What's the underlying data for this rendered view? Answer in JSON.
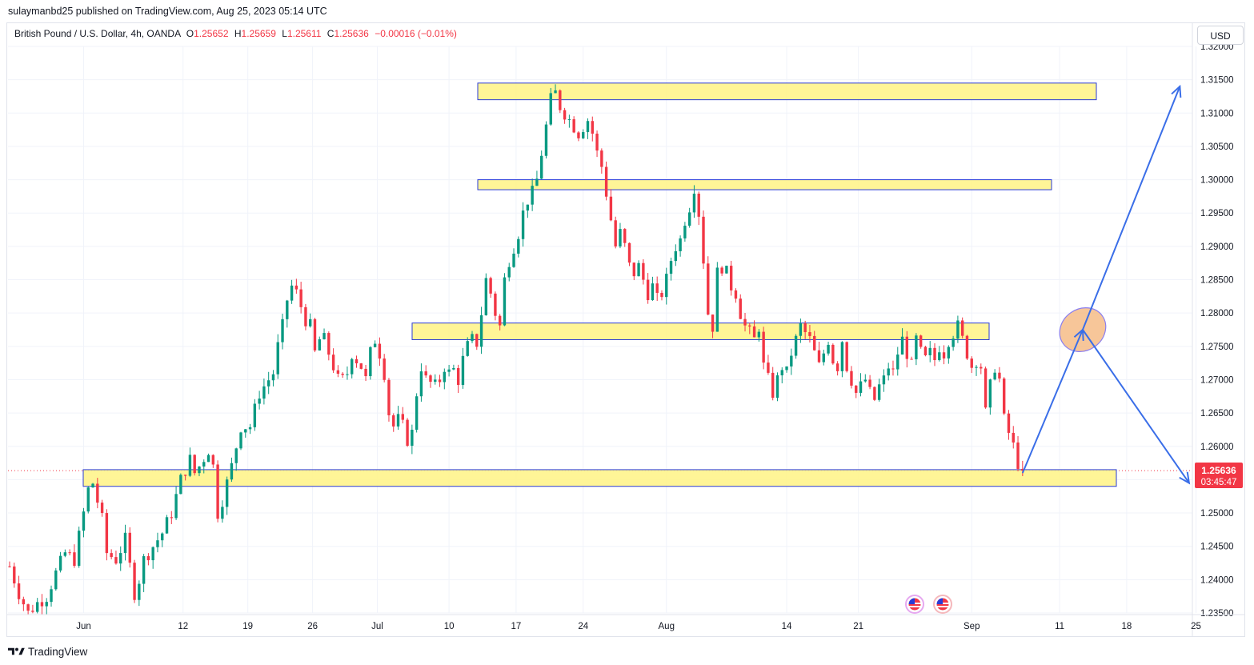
{
  "header": {
    "publisher_line": "sulaymanbd25 published on TradingView.com, Aug 25, 2023 05:14 UTC"
  },
  "legend": {
    "symbol": "British Pound / U.S. Dollar, 4h, OANDA",
    "open_label": "O",
    "open": "1.25652",
    "high_label": "H",
    "high": "1.25659",
    "low_label": "L",
    "low": "1.25611",
    "close_label": "C",
    "close": "1.25636",
    "change": "−0.00016 (−0.01%)"
  },
  "currency_button": "USD",
  "price_tag": {
    "price": "1.25636",
    "countdown": "03:45:47"
  },
  "brand": "TradingView",
  "colors": {
    "up": "#089981",
    "down": "#f23645",
    "zone_fill": "#fff48c",
    "zone_stroke": "#2a3bd6",
    "arrow": "#3a6ee8",
    "tag": "#f23645"
  },
  "chart_data": {
    "type": "candlestick",
    "symbol": "GBPUSD",
    "timeframe": "4h",
    "ylim": [
      1.235,
      1.32
    ],
    "y_ticks": [
      "1.23500",
      "1.24000",
      "1.24500",
      "1.25000",
      "1.25500",
      "1.26000",
      "1.26500",
      "1.27000",
      "1.27500",
      "1.28000",
      "1.28500",
      "1.29000",
      "1.29500",
      "1.30000",
      "1.30500",
      "1.31000",
      "1.31500",
      "1.32000"
    ],
    "x_ticks": [
      "Jun",
      "12",
      "19",
      "26",
      "Jul",
      "10",
      "17",
      "24",
      "Aug",
      "14",
      "21",
      "Sep",
      "11",
      "18",
      "25"
    ],
    "price_path": [
      [
        0,
        1.242
      ],
      [
        2,
        1.238
      ],
      [
        4,
        1.235
      ],
      [
        6,
        1.2365
      ],
      [
        8,
        1.2375
      ],
      [
        10,
        1.241
      ],
      [
        12,
        1.244
      ],
      [
        14,
        1.243
      ],
      [
        16,
        1.25
      ],
      [
        17,
        1.2535
      ],
      [
        18,
        1.2545
      ],
      [
        20,
        1.249
      ],
      [
        21,
        1.244
      ],
      [
        23,
        1.243
      ],
      [
        25,
        1.246
      ],
      [
        26,
        1.242
      ],
      [
        27,
        1.238
      ],
      [
        28,
        1.24
      ],
      [
        29,
        1.243
      ],
      [
        30,
        1.244
      ],
      [
        31,
        1.245
      ],
      [
        33,
        1.247
      ],
      [
        35,
        1.25
      ],
      [
        37,
        1.255
      ],
      [
        39,
        1.258
      ],
      [
        40,
        1.256
      ],
      [
        41,
        1.257
      ],
      [
        43,
        1.2595
      ],
      [
        44,
        1.257
      ],
      [
        45,
        1.25
      ],
      [
        46,
        1.252
      ],
      [
        48,
        1.257
      ],
      [
        50,
        1.263
      ],
      [
        52,
        1.263
      ],
      [
        54,
        1.268
      ],
      [
        56,
        1.27
      ],
      [
        57,
        1.271
      ],
      [
        58,
        1.275
      ],
      [
        59,
        1.278
      ],
      [
        60,
        1.282
      ],
      [
        61,
        1.284
      ],
      [
        62,
        1.283
      ],
      [
        63,
        1.281
      ],
      [
        64,
        1.279
      ],
      [
        65,
        1.278
      ],
      [
        66,
        1.274
      ],
      [
        67,
        1.276
      ],
      [
        68,
        1.276
      ],
      [
        69,
        1.274
      ],
      [
        70,
        1.272
      ],
      [
        71,
        1.27
      ],
      [
        72,
        1.27
      ],
      [
        73,
        1.271
      ],
      [
        74,
        1.274
      ],
      [
        75,
        1.273
      ],
      [
        76,
        1.272
      ],
      [
        77,
        1.27
      ],
      [
        78,
        1.274
      ],
      [
        79,
        1.276
      ],
      [
        80,
        1.274
      ],
      [
        81,
        1.271
      ],
      [
        82,
        1.265
      ],
      [
        83,
        1.263
      ],
      [
        84,
        1.264
      ],
      [
        85,
        1.263
      ],
      [
        86,
        1.261
      ],
      [
        87,
        1.262
      ],
      [
        88,
        1.268
      ],
      [
        89,
        1.272
      ],
      [
        90,
        1.27
      ],
      [
        91,
        1.2695
      ],
      [
        92,
        1.269
      ],
      [
        93,
        1.27
      ],
      [
        94,
        1.272
      ],
      [
        95,
        1.271
      ],
      [
        96,
        1.2715
      ],
      [
        97,
        1.27
      ],
      [
        98,
        1.273
      ],
      [
        99,
        1.275
      ],
      [
        100,
        1.276
      ],
      [
        101,
        1.2755
      ],
      [
        102,
        1.28
      ],
      [
        103,
        1.285
      ],
      [
        104,
        1.283
      ],
      [
        105,
        1.28
      ],
      [
        106,
        1.278
      ],
      [
        107,
        1.285
      ],
      [
        108,
        1.288
      ],
      [
        109,
        1.29
      ],
      [
        110,
        1.292
      ],
      [
        111,
        1.295
      ],
      [
        112,
        1.297
      ],
      [
        113,
        1.298
      ],
      [
        114,
        1.3
      ],
      [
        115,
        1.304
      ],
      [
        116,
        1.308
      ],
      [
        117,
        1.312
      ],
      [
        118,
        1.313
      ],
      [
        119,
        1.311
      ],
      [
        120,
        1.31
      ],
      [
        121,
        1.309
      ],
      [
        122,
        1.308
      ],
      [
        123,
        1.307
      ],
      [
        124,
        1.308
      ],
      [
        125,
        1.309
      ],
      [
        126,
        1.307
      ],
      [
        127,
        1.304
      ],
      [
        128,
        1.302
      ],
      [
        129,
        1.298
      ],
      [
        130,
        1.294
      ],
      [
        131,
        1.29
      ],
      [
        132,
        1.292
      ],
      [
        133,
        1.29
      ],
      [
        134,
        1.287
      ],
      [
        135,
        1.286
      ],
      [
        136,
        1.287
      ],
      [
        137,
        1.285
      ],
      [
        138,
        1.283
      ],
      [
        139,
        1.284
      ],
      [
        140,
        1.282
      ],
      [
        141,
        1.283
      ],
      [
        142,
        1.285
      ],
      [
        143,
        1.288
      ],
      [
        144,
        1.29
      ],
      [
        145,
        1.291
      ],
      [
        146,
        1.294
      ],
      [
        147,
        1.296
      ],
      [
        148,
        1.299
      ],
      [
        149,
        1.295
      ],
      [
        150,
        1.288
      ],
      [
        151,
        1.28
      ],
      [
        152,
        1.278
      ],
      [
        153,
        1.286
      ],
      [
        154,
        1.287
      ],
      [
        155,
        1.286
      ],
      [
        156,
        1.284
      ],
      [
        157,
        1.283
      ],
      [
        158,
        1.28
      ],
      [
        159,
        1.278
      ],
      [
        160,
        1.277
      ],
      [
        161,
        1.276
      ],
      [
        162,
        1.278
      ],
      [
        163,
        1.272
      ],
      [
        164,
        1.27
      ],
      [
        165,
        1.268
      ],
      [
        166,
        1.27
      ],
      [
        167,
        1.272
      ],
      [
        168,
        1.271
      ],
      [
        169,
        1.274
      ],
      [
        170,
        1.276
      ],
      [
        171,
        1.278
      ],
      [
        172,
        1.277
      ],
      [
        173,
        1.276
      ],
      [
        174,
        1.274
      ],
      [
        175,
        1.272
      ],
      [
        176,
        1.274
      ],
      [
        177,
        1.276
      ],
      [
        178,
        1.273
      ],
      [
        179,
        1.272
      ],
      [
        180,
        1.276
      ],
      [
        181,
        1.272
      ],
      [
        182,
        1.27
      ],
      [
        183,
        1.268
      ],
      [
        184,
        1.269
      ],
      [
        185,
        1.27
      ],
      [
        186,
        1.268
      ],
      [
        187,
        1.267
      ],
      [
        188,
        1.269
      ],
      [
        189,
        1.27
      ],
      [
        190,
        1.272
      ],
      [
        191,
        1.271
      ],
      [
        192,
        1.274
      ],
      [
        193,
        1.276
      ],
      [
        194,
        1.274
      ],
      [
        195,
        1.272
      ],
      [
        196,
        1.276
      ],
      [
        197,
        1.274
      ],
      [
        198,
        1.273
      ],
      [
        199,
        1.274
      ],
      [
        200,
        1.273
      ],
      [
        201,
        1.275
      ],
      [
        202,
        1.274
      ],
      [
        203,
        1.276
      ],
      [
        204,
        1.277
      ],
      [
        205,
        1.278
      ],
      [
        206,
        1.276
      ],
      [
        207,
        1.274
      ],
      [
        208,
        1.272
      ],
      [
        209,
        1.273
      ],
      [
        210,
        1.272
      ],
      [
        211,
        1.265
      ],
      [
        212,
        1.269
      ],
      [
        213,
        1.272
      ],
      [
        214,
        1.27
      ],
      [
        215,
        1.264
      ],
      [
        216,
        1.262
      ],
      [
        217,
        1.26
      ],
      [
        218,
        1.2575
      ],
      [
        219,
        1.2564
      ]
    ],
    "zones": [
      {
        "from": 1.312,
        "to": 1.3145
      },
      {
        "from": 1.2985,
        "to": 1.3
      },
      {
        "from": 1.276,
        "to": 1.2785
      },
      {
        "from": 1.254,
        "to": 1.2565
      }
    ],
    "projection": [
      {
        "from": [
          219,
          1.256
        ],
        "to": [
          232,
          1.2775
        ]
      },
      {
        "from": [
          232,
          1.2775
        ],
        "to": [
          253,
          1.314
        ]
      },
      {
        "from": [
          232,
          1.2775
        ],
        "to": [
          255,
          1.2545
        ]
      }
    ],
    "last_price": 1.25636
  }
}
